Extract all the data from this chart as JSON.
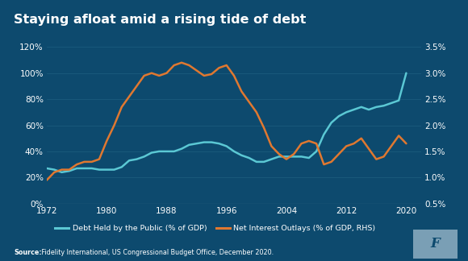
{
  "title": "Staying afloat amid a rising tide of debt",
  "background_color": "#0d4a6e",
  "text_color": "#ffffff",
  "source_bold": "Source:",
  "source_text": " Fidelity International, US Congressional Budget Office, December 2020.",
  "years": [
    1972,
    1973,
    1974,
    1975,
    1976,
    1977,
    1978,
    1979,
    1980,
    1981,
    1982,
    1983,
    1984,
    1985,
    1986,
    1987,
    1988,
    1989,
    1990,
    1991,
    1992,
    1993,
    1994,
    1995,
    1996,
    1997,
    1998,
    1999,
    2000,
    2001,
    2002,
    2003,
    2004,
    2005,
    2006,
    2007,
    2008,
    2009,
    2010,
    2011,
    2012,
    2013,
    2014,
    2015,
    2016,
    2017,
    2018,
    2019,
    2020
  ],
  "debt_gdp": [
    27,
    26,
    24,
    25,
    27,
    27,
    27,
    26,
    26,
    26,
    28,
    33,
    34,
    36,
    39,
    40,
    40,
    40,
    42,
    45,
    46,
    47,
    47,
    46,
    44,
    40,
    37,
    35,
    32,
    32,
    34,
    36,
    36,
    36,
    36,
    35,
    40,
    53,
    62,
    67,
    70,
    72,
    74,
    72,
    74,
    75,
    77,
    79,
    100
  ],
  "net_interest": [
    0.95,
    1.1,
    1.15,
    1.15,
    1.25,
    1.3,
    1.3,
    1.35,
    1.7,
    2.0,
    2.35,
    2.55,
    2.75,
    2.95,
    3.0,
    2.95,
    3.0,
    3.15,
    3.2,
    3.15,
    3.05,
    2.95,
    2.98,
    3.1,
    3.15,
    2.95,
    2.65,
    2.45,
    2.25,
    1.95,
    1.6,
    1.45,
    1.35,
    1.45,
    1.65,
    1.7,
    1.65,
    1.25,
    1.3,
    1.45,
    1.6,
    1.65,
    1.75,
    1.55,
    1.35,
    1.4,
    1.6,
    1.8,
    1.65
  ],
  "debt_color": "#5bc8d4",
  "interest_color": "#e07830",
  "grid_color": "#1d5f80",
  "left_yticks": [
    0,
    20,
    40,
    60,
    80,
    100,
    120
  ],
  "right_yticks": [
    0.5,
    1.0,
    1.5,
    2.0,
    2.5,
    3.0,
    3.5
  ],
  "xticks": [
    1972,
    1980,
    1988,
    1996,
    2004,
    2012,
    2020
  ],
  "legend_label1": "Debt Held by the Public (% of GDP)",
  "legend_label2": "Net Interest Outlays (% of GDP, RHS)",
  "fidelity_box_color": "#7a9fb5",
  "fidelity_text": "F"
}
